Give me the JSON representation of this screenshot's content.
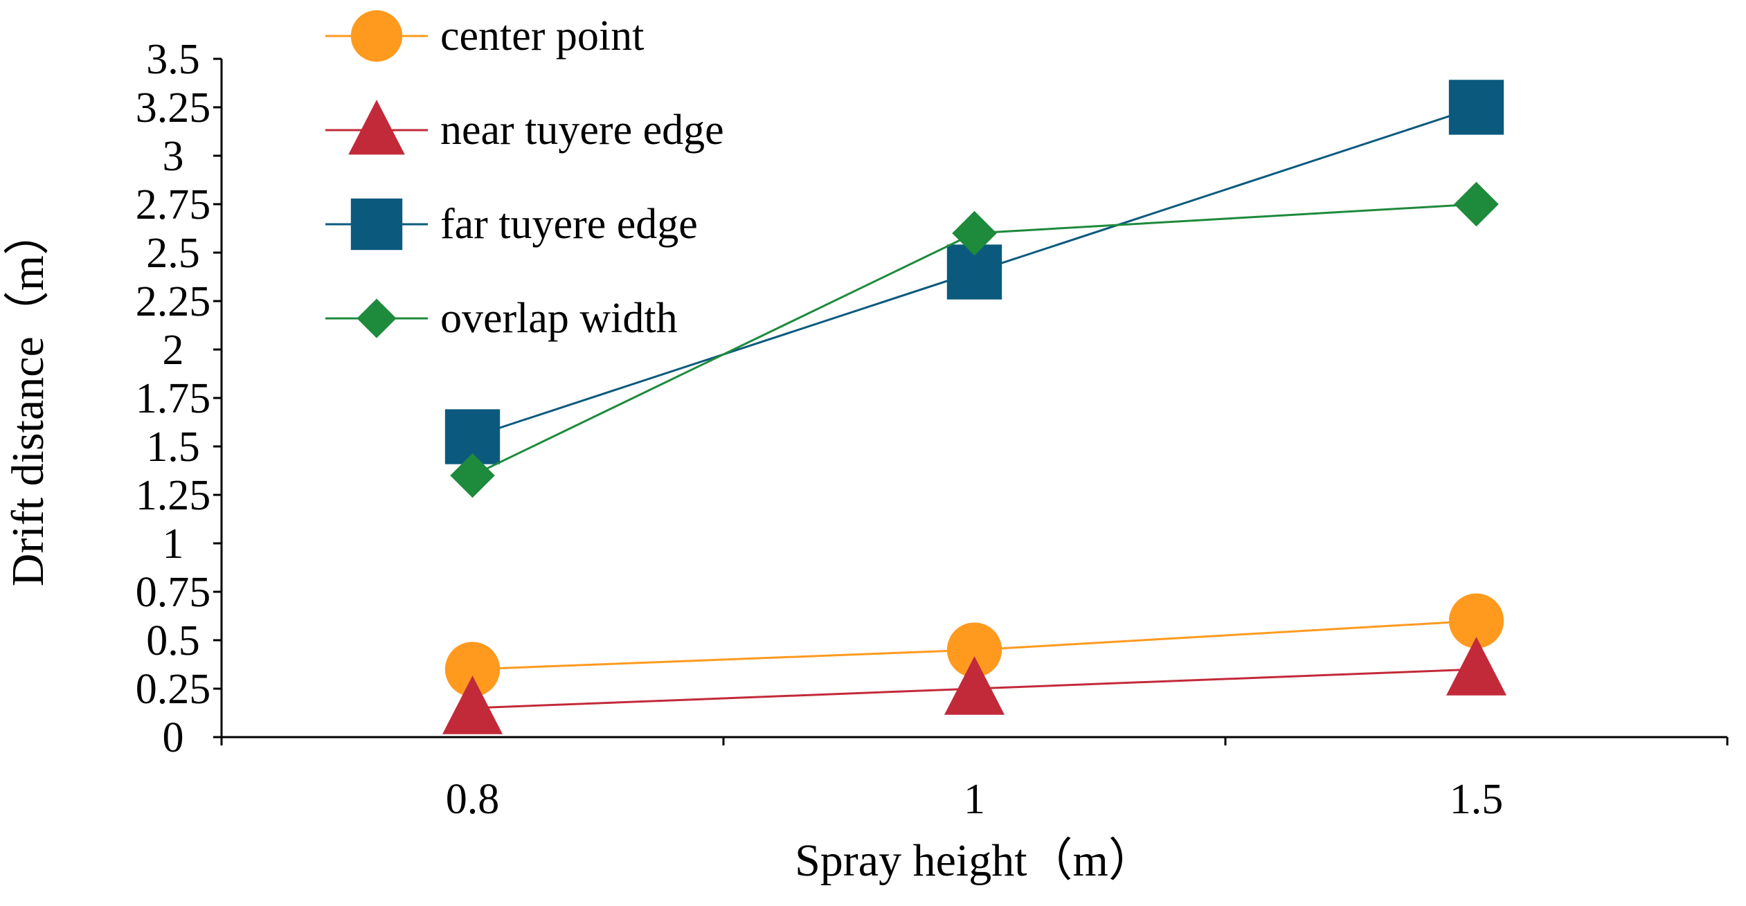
{
  "chart_data": {
    "type": "line",
    "title": "",
    "xlabel": "Spray height（m）",
    "ylabel": "Drift distance（m）",
    "categories": [
      "0.8",
      "1",
      "1.5"
    ],
    "ylim": [
      0,
      3.5
    ],
    "yticks": [
      "0",
      "0.25",
      "0.5",
      "0.75",
      "1",
      "1.25",
      "1.5",
      "1.75",
      "2",
      "2.25",
      "2.5",
      "2.75",
      "3",
      "3.25",
      "3.5"
    ],
    "grid": false,
    "legend_position": "top-left",
    "series": [
      {
        "name": "center point",
        "marker": "circle",
        "color": "#ff9a1f",
        "values": [
          0.35,
          0.45,
          0.6
        ]
      },
      {
        "name": "near tuyere edge",
        "marker": "triangle",
        "color": "#c22a3a",
        "values": [
          0.15,
          0.25,
          0.35
        ]
      },
      {
        "name": "far tuyere edge",
        "marker": "square",
        "color": "#0b5a7e",
        "values": [
          1.55,
          2.4,
          3.25
        ]
      },
      {
        "name": "overlap width",
        "marker": "diamond",
        "color": "#1e8a3c",
        "values": [
          1.35,
          2.6,
          2.75
        ]
      }
    ]
  }
}
